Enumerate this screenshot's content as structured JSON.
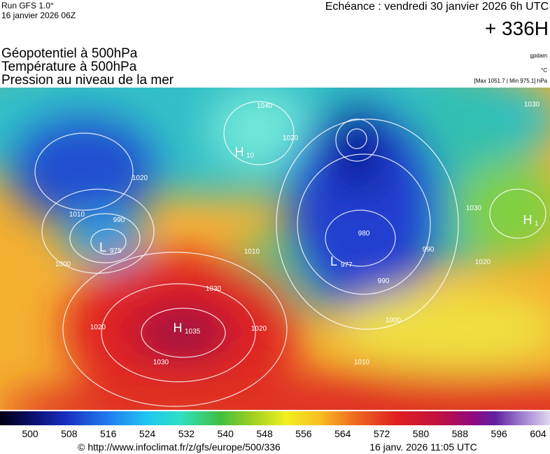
{
  "header": {
    "run": "Run GFS 1.0°",
    "run_date": "16 janvier 2026 06Z",
    "forecast": "Echéance : vendredi 30 janvier 2026 6h UTC",
    "lead": "+ 336H",
    "layers": [
      "Géopotentiel à 500hPa",
      "Température à 500hPa",
      "Pression au niveau de la mer"
    ],
    "units": [
      "gpdam",
      "°C",
      "[Max 1051.7 | Min 975.1] hPa"
    ]
  },
  "map": {
    "centers": [
      {
        "symbol": "H",
        "value": "1035"
      },
      {
        "symbol": "L",
        "value": "975"
      },
      {
        "symbol": "L",
        "value": "977"
      },
      {
        "symbol": "H",
        "value": "10"
      },
      {
        "symbol": "H",
        "value": "1"
      }
    ],
    "isobar_labels": [
      "1030",
      "1030",
      "1020",
      "1020",
      "1010",
      "1000",
      "990",
      "990",
      "980",
      "1010",
      "1030",
      "1030",
      "1020",
      "1020",
      "1010",
      "1000",
      "990",
      "1040",
      "1020"
    ]
  },
  "legend": {
    "labels": [
      "500",
      "508",
      "516",
      "524",
      "532",
      "540",
      "548",
      "556",
      "564",
      "572",
      "580",
      "588",
      "596",
      "604"
    ]
  },
  "footer": {
    "source": "© http://www.infoclimat.fr/z/gfs/europe/500/336",
    "generated": "16 janv. 2026 11:05 UTC"
  }
}
